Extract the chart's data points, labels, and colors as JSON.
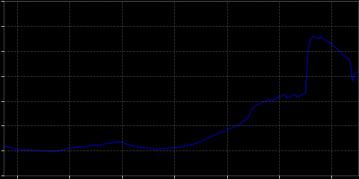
{
  "title": "",
  "background_color": "#000000",
  "line_color": "#00008B",
  "grid_color": "#555555",
  "x_start": 1875,
  "x_end": 2010,
  "ylim": [
    2000,
    9000
  ],
  "xlim": [
    1875,
    2010
  ],
  "years": [
    1875,
    1880,
    1885,
    1890,
    1895,
    1900,
    1905,
    1910,
    1916,
    1919,
    1922,
    1925,
    1930,
    1933,
    1939,
    1946,
    1950,
    1952,
    1955,
    1957,
    1960,
    1961,
    1962,
    1963,
    1964,
    1965,
    1966,
    1967,
    1968,
    1969,
    1970,
    1971,
    1972,
    1973,
    1974,
    1975,
    1976,
    1977,
    1978,
    1979,
    1980,
    1981,
    1982,
    1983,
    1984,
    1985,
    1986,
    1987,
    1988,
    1989,
    1990,
    1991,
    1992,
    1993,
    1994,
    1995,
    1996,
    1997,
    1998,
    1999,
    2000,
    2001,
    2002,
    2003,
    2004,
    2005,
    2006,
    2007,
    2008,
    2009,
    2010
  ],
  "population": [
    3200,
    3050,
    3000,
    2980,
    2950,
    3100,
    3150,
    3200,
    3300,
    3350,
    3250,
    3150,
    3100,
    3050,
    3100,
    3200,
    3350,
    3450,
    3600,
    3700,
    3800,
    3850,
    3900,
    3950,
    4000,
    4050,
    4150,
    4200,
    4300,
    4500,
    4700,
    4800,
    4850,
    4900,
    4950,
    5000,
    5050,
    5000,
    5050,
    5100,
    5150,
    5200,
    5250,
    5100,
    5150,
    5200,
    5250,
    5150,
    5200,
    5250,
    5300,
    7000,
    7500,
    7600,
    7550,
    7500,
    7550,
    7500,
    7400,
    7350,
    7300,
    7200,
    7100,
    7000,
    6900,
    6800,
    6700,
    6650,
    5800,
    6100,
    6150
  ]
}
